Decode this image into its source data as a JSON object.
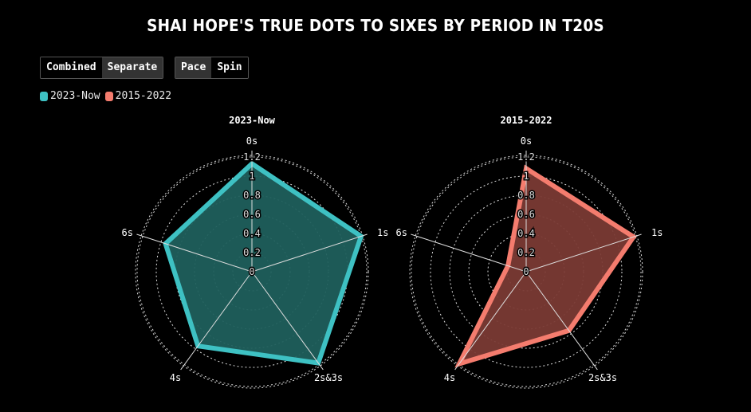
{
  "title": "Shai Hope's True Dots to Sixes by Period in T20s",
  "toggle_view": {
    "combined": "Combined",
    "separate": "Separate",
    "active": "separate"
  },
  "toggle_bowler": {
    "pace": "Pace",
    "spin": "Spin",
    "active": "pace"
  },
  "colors": {
    "recent": "#3ec1c3",
    "older": "#f47c6e"
  },
  "chart_data": [
    {
      "type": "radar",
      "title": "2023-Now",
      "axes": [
        "0s",
        "1s",
        "2s&3s",
        "4s",
        "6s"
      ],
      "rlim": [
        0,
        1.2
      ],
      "rticks": [
        "0",
        "0.2",
        "0.4",
        "0.6",
        "0.8",
        "1",
        "1.2"
      ],
      "series": [
        {
          "name": "2023-Now",
          "values": [
            1.13,
            1.2,
            1.18,
            0.96,
            0.95
          ]
        }
      ]
    },
    {
      "type": "radar",
      "title": "2015-2022",
      "axes": [
        "0s",
        "1s",
        "2s&3s",
        "4s",
        "6s"
      ],
      "rlim": [
        0,
        1.2
      ],
      "rticks": [
        "0",
        "0.2",
        "0.4",
        "0.6",
        "0.8",
        "1",
        "1.2"
      ],
      "series": [
        {
          "name": "2015-2022",
          "values": [
            1.08,
            1.18,
            0.76,
            1.19,
            0.2
          ]
        }
      ]
    }
  ]
}
